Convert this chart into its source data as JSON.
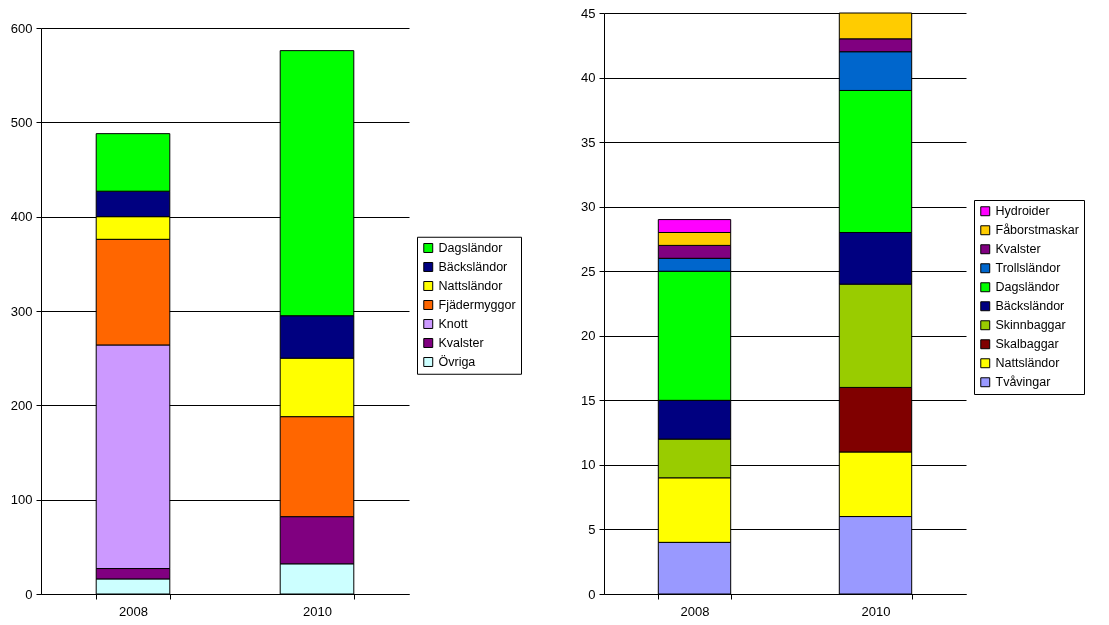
{
  "chart_data": [
    {
      "type": "bar",
      "stacked": true,
      "categories": [
        "2008",
        "2010"
      ],
      "ylim": [
        0,
        600
      ],
      "yticks": [
        0,
        100,
        200,
        300,
        400,
        500,
        600
      ],
      "grid": "y",
      "legend": "right",
      "series": [
        {
          "name": "Övriga",
          "color": "#ccffff",
          "values": [
            16,
            32
          ]
        },
        {
          "name": "Kvalster",
          "color": "#800080",
          "values": [
            11,
            50
          ]
        },
        {
          "name": "Knott",
          "color": "#cc99ff",
          "values": [
            237,
            0
          ]
        },
        {
          "name": "Fjädermyggor",
          "color": "#ff6600",
          "values": [
            112,
            106
          ]
        },
        {
          "name": "Nattsländor",
          "color": "#ffff00",
          "values": [
            24,
            62
          ]
        },
        {
          "name": "Bäcksländor",
          "color": "#000080",
          "values": [
            27,
            45
          ]
        },
        {
          "name": "Dagsländor",
          "color": "#00ff00",
          "values": [
            61,
            281
          ]
        }
      ]
    },
    {
      "type": "bar",
      "stacked": true,
      "categories": [
        "2008",
        "2010"
      ],
      "ylim": [
        0,
        45
      ],
      "yticks": [
        0,
        5,
        10,
        15,
        20,
        25,
        30,
        35,
        40,
        45
      ],
      "grid": "y",
      "legend": "right",
      "series": [
        {
          "name": "Tvåvingar",
          "color": "#9999ff",
          "values": [
            4,
            6
          ]
        },
        {
          "name": "Nattsländor",
          "color": "#ffff00",
          "values": [
            5,
            5
          ]
        },
        {
          "name": "Skalbaggar",
          "color": "#800000",
          "values": [
            0,
            5
          ]
        },
        {
          "name": "Skinnbaggar",
          "color": "#99cc00",
          "values": [
            3,
            8
          ]
        },
        {
          "name": "Bäcksländor",
          "color": "#000080",
          "values": [
            3,
            4
          ]
        },
        {
          "name": "Dagsländor",
          "color": "#00ff00",
          "values": [
            10,
            11
          ]
        },
        {
          "name": "Trollsländor",
          "color": "#0066cc",
          "values": [
            1,
            3
          ]
        },
        {
          "name": "Kvalster",
          "color": "#800080",
          "values": [
            1,
            1
          ]
        },
        {
          "name": "Fåborstmaskar",
          "color": "#ffcc00",
          "values": [
            1,
            2
          ]
        },
        {
          "name": "Hydroider",
          "color": "#ff00ff",
          "values": [
            1,
            0
          ]
        }
      ]
    }
  ]
}
